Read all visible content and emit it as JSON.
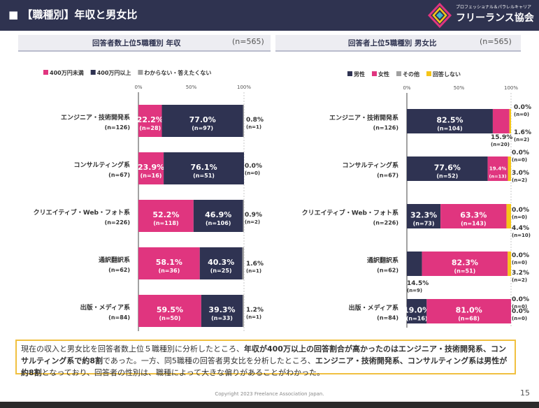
{
  "header": {
    "title": "■ 【職種別】年収と男女比",
    "logo_tagline": "プロフェッショナル＆パラレルキャリア",
    "logo_name": "フリーランス協会"
  },
  "panels": {
    "left": {
      "title": "回答者数上位5職種別 年収",
      "n": "(n=565)"
    },
    "right": {
      "title": "回答者上位5職種別 男女比",
      "n": "(n=565)"
    }
  },
  "chart_data": [
    {
      "type": "bar",
      "stacked": true,
      "orientation": "horizontal",
      "title": "回答者数上位5職種別 年収",
      "xlim": [
        0,
        100
      ],
      "x_ticks": [
        "0%",
        "50%",
        "100%"
      ],
      "legend": [
        {
          "label": "400万円未満",
          "color": "#e0357f"
        },
        {
          "label": "400万円以上",
          "color": "#2f3352"
        },
        {
          "label": "わからない・答えたくない",
          "color": "#a0a0a0"
        }
      ],
      "categories": [
        {
          "name": "エンジニア・技術開発系",
          "n": "(n=126)"
        },
        {
          "name": "コンサルティング系",
          "n": "(n=67)"
        },
        {
          "name": "クリエイティブ・Web・フォト系",
          "n": "(n=226)"
        },
        {
          "name": "通訳翻訳系",
          "n": "(n=62)"
        },
        {
          "name": "出版・メディア系",
          "n": "(n=84)"
        }
      ],
      "series": [
        {
          "name": "400万円未満",
          "values": [
            22.2,
            23.9,
            52.2,
            58.1,
            59.5
          ],
          "pct": [
            "22.2%",
            "23.9%",
            "52.2%",
            "58.1%",
            "59.5%"
          ],
          "counts": [
            "(n=28)",
            "(n=16)",
            "(n=118)",
            "(n=36)",
            "(n=50)"
          ]
        },
        {
          "name": "400万円以上",
          "values": [
            77.0,
            76.1,
            46.9,
            40.3,
            39.3
          ],
          "pct": [
            "77.0%",
            "76.1%",
            "46.9%",
            "40.3%",
            "39.3%"
          ],
          "counts": [
            "(n=97)",
            "(n=51)",
            "(n=106)",
            "(n=25)",
            "(n=33)"
          ]
        },
        {
          "name": "わからない・答えたくない",
          "values": [
            0.8,
            0.0,
            0.9,
            1.6,
            1.2
          ],
          "pct": [
            "0.8%",
            "0.0%",
            "0.9%",
            "1.6%",
            "1.2%"
          ],
          "counts": [
            "(n=1)",
            "(n=0)",
            "(n=2)",
            "(n=1)",
            "(n=1)"
          ]
        }
      ]
    },
    {
      "type": "bar",
      "stacked": true,
      "orientation": "horizontal",
      "title": "回答者上位5職種別 男女比",
      "xlim": [
        0,
        100
      ],
      "x_ticks": [
        "0%",
        "50%",
        "100%"
      ],
      "legend": [
        {
          "label": "男性",
          "color": "#2f3352"
        },
        {
          "label": "女性",
          "color": "#e0357f"
        },
        {
          "label": "その他",
          "color": "#a0a0a0"
        },
        {
          "label": "回答しない",
          "color": "#f5c518"
        }
      ],
      "categories": [
        {
          "name": "エンジニア・技術開発系",
          "n": "(n=126)"
        },
        {
          "name": "コンサルティング系",
          "n": "(n=67)"
        },
        {
          "name": "クリエイティブ・Web・フォト系",
          "n": "(n=226)"
        },
        {
          "name": "通訳翻訳系",
          "n": "(n=62)"
        },
        {
          "name": "出版・メディア系",
          "n": "(n=84)"
        }
      ],
      "series": [
        {
          "name": "男性",
          "values": [
            82.5,
            77.6,
            32.3,
            14.5,
            19.0
          ],
          "pct": [
            "82.5%",
            "77.6%",
            "32.3%",
            "14.5%",
            "19.0%"
          ],
          "counts": [
            "(n=104)",
            "(n=52)",
            "(n=73)",
            "(n=9)",
            "(n=16)"
          ]
        },
        {
          "name": "女性",
          "values": [
            15.9,
            19.4,
            63.3,
            82.3,
            81.0
          ],
          "pct": [
            "15.9%",
            "19.4%",
            "63.3%",
            "82.3%",
            "81.0%"
          ],
          "counts": [
            "(n=20)",
            "(n=13)",
            "(n=143)",
            "(n=51)",
            "(n=68)"
          ]
        },
        {
          "name": "その他",
          "values": [
            0.0,
            0.0,
            0.0,
            0.0,
            0.0
          ],
          "pct": [
            "0.0%",
            "0.0%",
            "0.0%",
            "0.0%",
            "0.0%"
          ],
          "counts": [
            "(n=0)",
            "(n=0)",
            "(n=0)",
            "(n=0)",
            "(n=0)"
          ]
        },
        {
          "name": "回答しない",
          "values": [
            1.6,
            3.0,
            4.4,
            3.2,
            0.0
          ],
          "pct": [
            "1.6%",
            "3.0%",
            "4.4%",
            "3.2%",
            "0.0%"
          ],
          "counts": [
            "(n=2)",
            "(n=2)",
            "(n=10)",
            "(n=2)",
            "(n=0)"
          ]
        }
      ]
    }
  ],
  "summary": {
    "p1": "現在の収入と男女比を回答者数上位５職種別に分析したところ、",
    "b1": "年収が400万以上の回答割合が高かったのはエンジニア・技術開発系、コンサルティング系で約8割",
    "p2": "であった。一方、同5職種の回答者男女比を分析したところ、",
    "b2": "エンジニア・技術開発系、コンサルティング系は男性が約8割",
    "p3": "となっており、回答者の性別は、職種によって大きな偏りがあることがわかった。"
  },
  "footer": {
    "copyright": "Copyright 2023 Freelance Association Japan.",
    "page": "15"
  }
}
